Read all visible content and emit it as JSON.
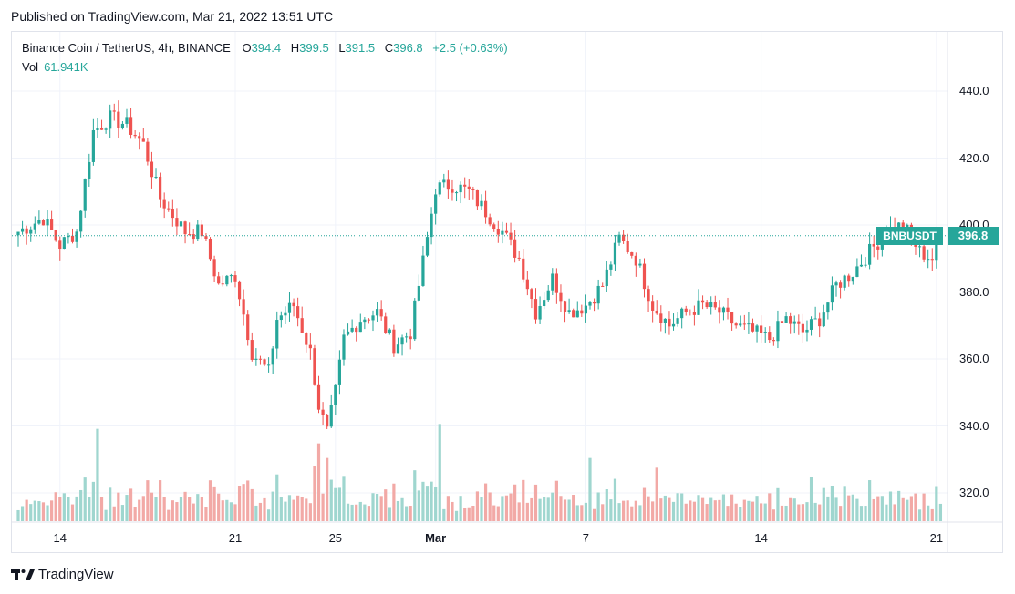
{
  "published": "Published on TradingView.com, Mar 21, 2022 13:51 UTC",
  "legend": {
    "symbol": "Binance Coin / TetherUS, 4h, BINANCE",
    "o_label": "O",
    "o": "394.4",
    "h_label": "H",
    "h": "399.5",
    "l_label": "L",
    "l": "391.5",
    "c_label": "C",
    "c": "396.8",
    "change": "+2.5 (+0.63%)",
    "vol_label": "Vol",
    "vol": "61.941K"
  },
  "badge": {
    "symbol": "BNBUSDT",
    "price": "396.8"
  },
  "footer": {
    "brand": "TradingView",
    "logo_icon": "tradingview-logo-icon"
  },
  "colors": {
    "up": "#26a69a",
    "down": "#ef5350",
    "vol_up": "#9fd6cf",
    "vol_down": "#f2a9a6",
    "grid": "#f0f3fa"
  },
  "chart_data": {
    "type": "candlestick",
    "title": "Binance Coin / TetherUS, 4h, BINANCE",
    "ylim": [
      311,
      451
    ],
    "y_ticks": [
      "440.0",
      "420.0",
      "400.0",
      "380.0",
      "360.0",
      "340.0",
      "320.0"
    ],
    "y_tick_values": [
      440,
      420,
      400,
      380,
      360,
      340,
      320
    ],
    "x_ticks": [
      {
        "label": "14",
        "index": 10
      },
      {
        "label": "21",
        "index": 52
      },
      {
        "label": "25",
        "index": 76
      },
      {
        "label": "Mar",
        "index": 100
      },
      {
        "label": "7",
        "index": 136
      },
      {
        "label": "14",
        "index": 178
      },
      {
        "label": "21",
        "index": 220
      }
    ],
    "last_close": 396.8,
    "candles_description": "Approximate 4h OHLC path read from the chart",
    "close_path": [
      [
        0,
        398
      ],
      [
        6,
        402
      ],
      [
        10,
        394
      ],
      [
        14,
        398
      ],
      [
        18,
        428
      ],
      [
        22,
        432
      ],
      [
        26,
        430
      ],
      [
        30,
        424
      ],
      [
        34,
        408
      ],
      [
        40,
        398
      ],
      [
        44,
        398
      ],
      [
        48,
        382
      ],
      [
        52,
        385
      ],
      [
        56,
        362
      ],
      [
        60,
        356
      ],
      [
        62,
        372
      ],
      [
        66,
        376
      ],
      [
        70,
        362
      ],
      [
        72,
        346
      ],
      [
        74,
        338
      ],
      [
        76,
        350
      ],
      [
        78,
        366
      ],
      [
        82,
        372
      ],
      [
        86,
        374
      ],
      [
        90,
        364
      ],
      [
        94,
        368
      ],
      [
        98,
        396
      ],
      [
        100,
        411
      ],
      [
        104,
        412
      ],
      [
        108,
        410
      ],
      [
        112,
        404
      ],
      [
        116,
        398
      ],
      [
        120,
        390
      ],
      [
        124,
        374
      ],
      [
        128,
        384
      ],
      [
        132,
        374
      ],
      [
        136,
        376
      ],
      [
        140,
        382
      ],
      [
        144,
        396
      ],
      [
        148,
        390
      ],
      [
        152,
        376
      ],
      [
        156,
        370
      ],
      [
        160,
        374
      ],
      [
        164,
        376
      ],
      [
        168,
        374
      ],
      [
        172,
        370
      ],
      [
        176,
        368
      ],
      [
        180,
        366
      ],
      [
        184,
        372
      ],
      [
        188,
        368
      ],
      [
        192,
        372
      ],
      [
        196,
        382
      ],
      [
        200,
        386
      ],
      [
        204,
        392
      ],
      [
        208,
        398
      ],
      [
        212,
        400
      ],
      [
        216,
        392
      ],
      [
        219,
        390
      ],
      [
        221,
        396.8
      ]
    ],
    "volume_max_index": 19
  }
}
